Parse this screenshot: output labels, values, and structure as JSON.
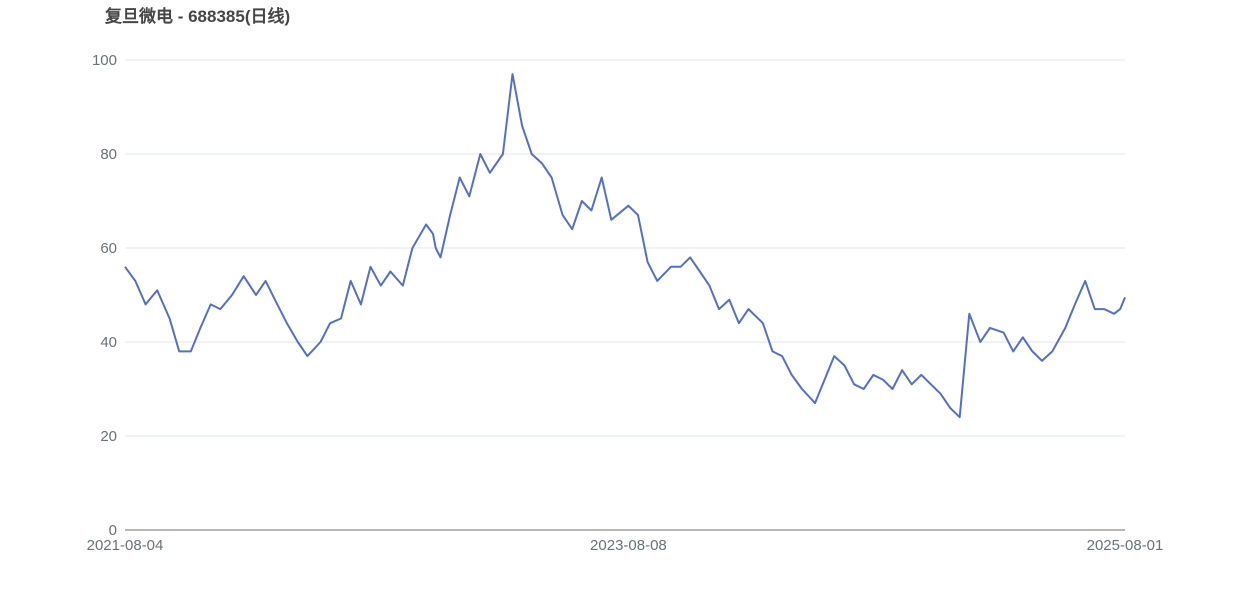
{
  "chart_data": {
    "type": "line",
    "title": "复旦微电 - 688385(日线)",
    "xlabel": "",
    "ylabel": "",
    "ylim": [
      0,
      100
    ],
    "y_ticks": [
      "0",
      "20",
      "40",
      "60",
      "80",
      "100"
    ],
    "x_ticks": [
      "2021-08-04",
      "2023-08-08",
      "2025-08-01"
    ],
    "x_range": [
      "2021-08-04",
      "2025-08-01"
    ],
    "grid": true,
    "legend": "none",
    "line_color": "#5470c6",
    "series": [
      {
        "x": [
          "2021-08-04",
          "2021-08-19",
          "2021-09-03",
          "2021-09-20",
          "2021-10-08",
          "2021-10-22",
          "2021-11-08",
          "2021-11-22",
          "2021-12-07",
          "2021-12-21",
          "2022-01-07",
          "2022-01-24",
          "2022-02-11",
          "2022-02-25",
          "2022-03-14",
          "2022-03-28",
          "2022-04-13",
          "2022-04-27",
          "2022-05-16",
          "2022-05-30",
          "2022-06-15",
          "2022-06-29",
          "2022-07-14",
          "2022-07-28",
          "2022-08-12",
          "2022-08-26",
          "2022-09-13",
          "2022-09-27",
          "2022-10-17",
          "2022-10-27",
          "2022-10-31",
          "2022-11-07",
          "2022-11-21",
          "2022-12-05",
          "2022-12-19",
          "2023-01-04",
          "2023-01-18",
          "2023-02-06",
          "2023-02-20",
          "2023-03-06",
          "2023-03-20",
          "2023-04-04",
          "2023-04-18",
          "2023-05-04",
          "2023-05-18",
          "2023-06-01",
          "2023-06-15",
          "2023-06-30",
          "2023-07-14",
          "2023-08-08",
          "2023-08-22",
          "2023-09-05",
          "2023-09-19",
          "2023-10-09",
          "2023-10-23",
          "2023-11-06",
          "2023-11-20",
          "2023-12-04",
          "2023-12-18",
          "2024-01-02",
          "2024-01-16",
          "2024-01-30",
          "2024-02-20",
          "2024-03-05",
          "2024-03-19",
          "2024-04-02",
          "2024-04-17",
          "2024-05-06",
          "2024-05-20",
          "2024-06-03",
          "2024-06-18",
          "2024-07-02",
          "2024-07-16",
          "2024-07-30",
          "2024-08-13",
          "2024-08-27",
          "2024-09-10",
          "2024-09-24",
          "2024-10-08",
          "2024-10-22",
          "2024-11-05",
          "2024-11-19",
          "2024-12-03",
          "2024-12-17",
          "2025-01-02",
          "2025-01-16",
          "2025-02-05",
          "2025-02-19",
          "2025-03-05",
          "2025-03-19",
          "2025-04-02",
          "2025-04-17",
          "2025-05-06",
          "2025-05-20",
          "2025-06-04",
          "2025-06-18",
          "2025-07-02",
          "2025-07-16",
          "2025-07-25",
          "2025-08-01"
        ],
        "values": [
          56,
          53,
          48,
          51,
          45,
          38,
          38,
          43,
          48,
          47,
          50,
          54,
          50,
          53,
          48,
          44,
          40,
          37,
          40,
          44,
          45,
          53,
          48,
          56,
          52,
          55,
          52,
          60,
          65,
          63,
          60,
          58,
          67,
          75,
          71,
          80,
          76,
          80,
          97,
          86,
          80,
          78,
          75,
          67,
          64,
          70,
          68,
          75,
          66,
          69,
          67,
          57,
          53,
          56,
          56,
          58,
          55,
          52,
          47,
          49,
          44,
          47,
          44,
          38,
          37,
          33,
          30,
          27,
          32,
          37,
          35,
          31,
          30,
          33,
          32,
          30,
          34,
          31,
          33,
          31,
          29,
          26,
          24,
          46,
          40,
          43,
          42,
          38,
          41,
          38,
          36,
          38,
          43,
          48,
          53,
          47,
          47,
          46,
          47,
          49.5
        ]
      }
    ]
  }
}
